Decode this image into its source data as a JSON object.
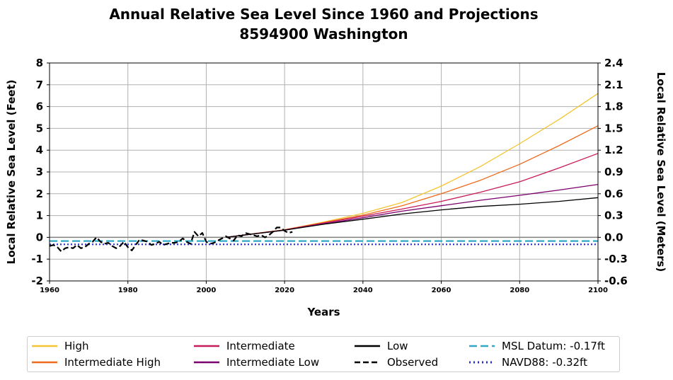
{
  "chart_data": {
    "type": "line",
    "title": "Annual Relative Sea Level Since 1960 and Projections",
    "subtitle": "8594900 Washington",
    "xlabel": "Years",
    "ylabel": "Local Relative Sea Level (Feet)",
    "ylabel_right": "Local Relative Sea Level (Meters)",
    "xlim": [
      1960,
      2100
    ],
    "ylim": [
      -2,
      8
    ],
    "ylim_right": [
      -0.6,
      2.4
    ],
    "x_ticks": [
      "1960",
      "1980",
      "2000",
      "2020",
      "2040",
      "2060",
      "2080",
      "2100"
    ],
    "y_ticks": [
      "-2",
      "-1",
      "0",
      "1",
      "2",
      "3",
      "4",
      "5",
      "6",
      "7",
      "8"
    ],
    "y_ticks_right": [
      "-0.6",
      "-0.3",
      "0.0",
      "0.3",
      "0.6",
      "0.9",
      "1.2",
      "1.5",
      "1.8",
      "2.1",
      "2.4"
    ],
    "grid": true,
    "legend_position": "bottom",
    "series": [
      {
        "name": "High",
        "color": "#f4c430",
        "style": "solid",
        "x": [
          2005,
          2020,
          2030,
          2040,
          2050,
          2060,
          2070,
          2080,
          2090,
          2100
        ],
        "y": [
          0.0,
          0.35,
          0.7,
          1.1,
          1.6,
          2.35,
          3.25,
          4.3,
          5.4,
          6.6
        ]
      },
      {
        "name": "Intermediate High",
        "color": "#ef6a1a",
        "style": "solid",
        "x": [
          2005,
          2020,
          2030,
          2040,
          2050,
          2060,
          2070,
          2080,
          2090,
          2100
        ],
        "y": [
          0.0,
          0.35,
          0.68,
          1.02,
          1.45,
          2.0,
          2.62,
          3.35,
          4.2,
          5.12
        ]
      },
      {
        "name": "Intermediate",
        "color": "#c81a5a",
        "style": "solid",
        "x": [
          2005,
          2020,
          2030,
          2040,
          2050,
          2060,
          2070,
          2080,
          2090,
          2100
        ],
        "y": [
          0.0,
          0.34,
          0.66,
          0.97,
          1.3,
          1.65,
          2.07,
          2.55,
          3.18,
          3.85
        ]
      },
      {
        "name": "Intermediate Low",
        "color": "#7b006e",
        "style": "solid",
        "x": [
          2005,
          2020,
          2030,
          2040,
          2050,
          2060,
          2070,
          2080,
          2090,
          2100
        ],
        "y": [
          0.0,
          0.33,
          0.62,
          0.9,
          1.2,
          1.45,
          1.7,
          1.93,
          2.17,
          2.43
        ]
      },
      {
        "name": "Low",
        "color": "#000000",
        "style": "solid",
        "x": [
          2005,
          2020,
          2030,
          2040,
          2050,
          2060,
          2070,
          2080,
          2090,
          2100
        ],
        "y": [
          0.0,
          0.33,
          0.6,
          0.83,
          1.07,
          1.26,
          1.42,
          1.52,
          1.65,
          1.82
        ]
      },
      {
        "name": "Observed",
        "color": "#000000",
        "style": "dashed",
        "x": [
          1960,
          1961,
          1962,
          1963,
          1964,
          1965,
          1966,
          1967,
          1968,
          1969,
          1970,
          1971,
          1972,
          1973,
          1974,
          1975,
          1976,
          1977,
          1978,
          1979,
          1980,
          1981,
          1982,
          1983,
          1984,
          1985,
          1986,
          1987,
          1988,
          1989,
          1990,
          1991,
          1992,
          1993,
          1994,
          1995,
          1996,
          1997,
          1998,
          1999,
          2000,
          2001,
          2002,
          2005,
          2006,
          2007,
          2008,
          2009,
          2010,
          2011,
          2012,
          2013,
          2014,
          2015,
          2016,
          2017,
          2018,
          2019,
          2020,
          2021,
          2022
        ],
        "y": [
          -0.4,
          -0.35,
          -0.45,
          -0.65,
          -0.5,
          -0.45,
          -0.5,
          -0.35,
          -0.5,
          -0.45,
          -0.3,
          -0.2,
          0.0,
          -0.2,
          -0.3,
          -0.25,
          -0.4,
          -0.5,
          -0.4,
          -0.2,
          -0.45,
          -0.6,
          -0.35,
          -0.1,
          -0.15,
          -0.2,
          -0.35,
          -0.3,
          -0.2,
          -0.35,
          -0.3,
          -0.25,
          -0.25,
          -0.2,
          -0.05,
          -0.2,
          -0.3,
          0.25,
          0.05,
          0.2,
          -0.2,
          -0.3,
          -0.25,
          0.05,
          -0.05,
          -0.15,
          0.1,
          0.05,
          0.2,
          0.15,
          0.1,
          0.05,
          0.1,
          0.0,
          0.1,
          0.25,
          0.45,
          0.45,
          0.3,
          0.2,
          0.25
        ]
      },
      {
        "name": "MSL Datum: -0.17ft",
        "color": "#2ea8c8",
        "style": "longdash",
        "x": [
          1960,
          2100
        ],
        "y": [
          -0.17,
          -0.17
        ]
      },
      {
        "name": "NAVD88: -0.32ft",
        "color": "#2a2ad4",
        "style": "dotted",
        "x": [
          1960,
          2100
        ],
        "y": [
          -0.32,
          -0.32
        ]
      }
    ]
  }
}
